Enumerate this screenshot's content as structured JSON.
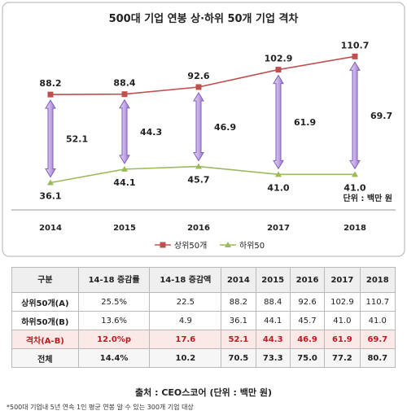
{
  "chart_data": {
    "type": "line",
    "title": "500대 기업 연봉 상·하위 50개 기업 격차",
    "unit_label": "단위 : 백만 원",
    "categories": [
      "2014",
      "2015",
      "2016",
      "2017",
      "2018"
    ],
    "series": [
      {
        "name": "상위50개",
        "values": [
          88.2,
          88.4,
          92.6,
          102.9,
          110.7
        ],
        "color": "#c0504d"
      },
      {
        "name": "하위50",
        "values": [
          36.1,
          44.1,
          45.7,
          41.0,
          41.0
        ],
        "color": "#9bbb59"
      }
    ],
    "gap_values": [
      52.1,
      44.3,
      46.9,
      61.9,
      69.7
    ],
    "gap_color": "#b39ddb",
    "ylim": [
      20,
      120
    ],
    "legend_position": "bottom-right",
    "grid": false
  },
  "table": {
    "headers": [
      "구분",
      "14-18 증감률",
      "14-18 증감액",
      "2014",
      "2015",
      "2016",
      "2017",
      "2018"
    ],
    "rows": [
      [
        "상위50개(A)",
        "25.5%",
        "22.5",
        "88.2",
        "88.4",
        "92.6",
        "102.9",
        "110.7"
      ],
      [
        "하위50개(B)",
        "13.6%",
        "4.9",
        "36.1",
        "44.1",
        "45.7",
        "41.0",
        "41.0"
      ],
      [
        "격차(A-B)",
        "12.0%p",
        "17.6",
        "52.1",
        "44.3",
        "46.9",
        "61.9",
        "69.7"
      ],
      [
        "전체",
        "14.4%",
        "10.2",
        "70.5",
        "73.3",
        "75.0",
        "77.2",
        "80.7"
      ]
    ]
  },
  "source_text": "출처 : CEO스코어 (단위 : 백만 원)",
  "footnote": "*500대 기업내 5년 연속 1인 평균 연봉 알 수 있는 300개 기업 대상"
}
